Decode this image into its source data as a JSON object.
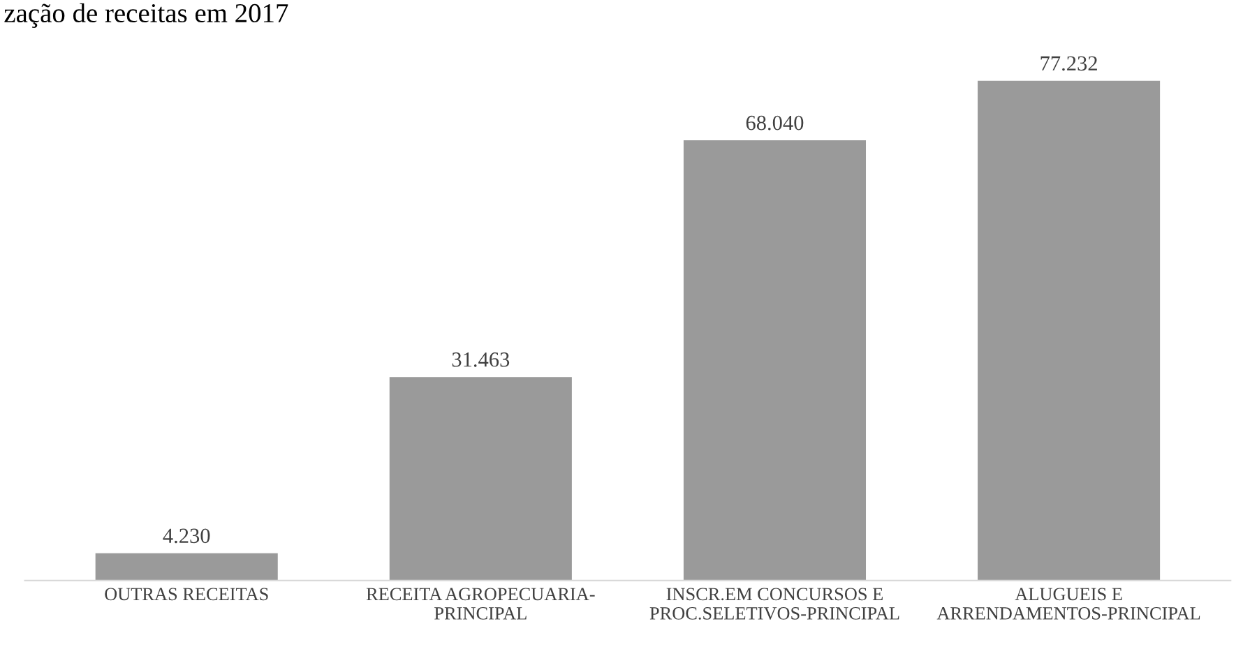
{
  "chart_data": {
    "type": "bar",
    "title": "zação de receitas em 2017",
    "categories": [
      "OUTRAS RECEITAS",
      "RECEITA AGROPECUARIA-\nPRINCIPAL",
      "INSCR.EM CONCURSOS E\nPROC.SELETIVOS-PRINCIPAL",
      "ALUGUEIS E\nARRENDAMENTOS-PRINCIPAL"
    ],
    "values": [
      4230,
      31463,
      68040,
      77232
    ],
    "value_labels": [
      "4.230",
      "31.463",
      "68.040",
      "77.232"
    ],
    "color": "#9a9a9a",
    "grid": false,
    "legend": false
  }
}
